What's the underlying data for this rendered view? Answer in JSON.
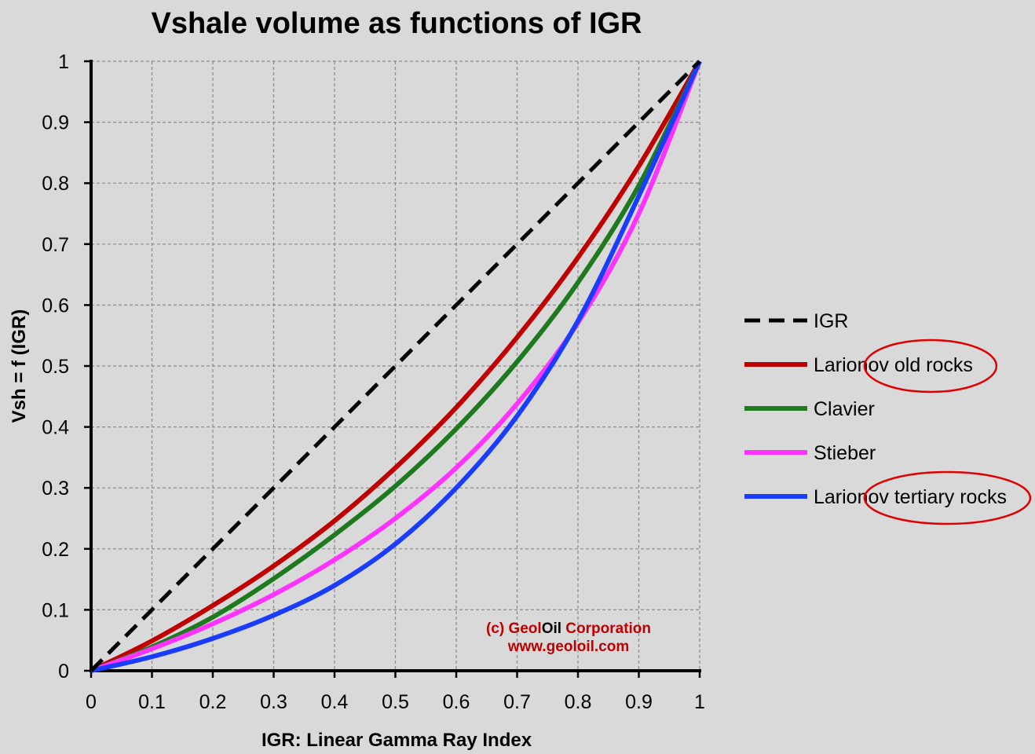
{
  "chart_data": {
    "type": "line",
    "title": "Vshale volume as functions of IGR",
    "xlabel": "IGR: Linear Gamma Ray Index",
    "ylabel": "Vsh = f (IGR)",
    "xlim": [
      0,
      1
    ],
    "ylim": [
      0,
      1
    ],
    "x_ticks": [
      "0",
      "0.1",
      "0.2",
      "0.3",
      "0.4",
      "0.5",
      "0.6",
      "0.7",
      "0.8",
      "0.9",
      "1"
    ],
    "y_ticks": [
      "0",
      "0.1",
      "0.2",
      "0.3",
      "0.4",
      "0.5",
      "0.6",
      "0.7",
      "0.8",
      "0.9",
      "1"
    ],
    "grid": true,
    "legend_position": "right",
    "x": [
      0,
      0.1,
      0.2,
      0.3,
      0.4,
      0.5,
      0.6,
      0.7,
      0.8,
      0.9,
      1
    ],
    "series": [
      {
        "name": "IGR",
        "color": "#000000",
        "dash": true,
        "values": [
          0,
          0.1,
          0.2,
          0.3,
          0.4,
          0.5,
          0.6,
          0.7,
          0.8,
          0.9,
          1
        ]
      },
      {
        "name": "Larionov old rocks",
        "color": "#c00000",
        "dash": false,
        "values": [
          0,
          0.049,
          0.107,
          0.172,
          0.246,
          0.333,
          0.432,
          0.547,
          0.678,
          0.828,
          1
        ]
      },
      {
        "name": "Clavier",
        "color": "#1e7a1e",
        "dash": false,
        "values": [
          0,
          0.039,
          0.088,
          0.151,
          0.223,
          0.303,
          0.397,
          0.507,
          0.637,
          0.796,
          1
        ]
      },
      {
        "name": "Stieber",
        "color": "#ff33ff",
        "dash": false,
        "values": [
          0,
          0.036,
          0.077,
          0.125,
          0.182,
          0.25,
          0.333,
          0.438,
          0.571,
          0.75,
          1
        ]
      },
      {
        "name": "Larionov tertiary rocks",
        "color": "#1a3cff",
        "dash": false,
        "values": [
          0,
          0.023,
          0.053,
          0.091,
          0.14,
          0.208,
          0.3,
          0.418,
          0.574,
          0.779,
          1
        ]
      }
    ],
    "legend_labels": [
      {
        "prefix": "IGR",
        "circled": ""
      },
      {
        "prefix": "Larionov ",
        "circled": "old rocks"
      },
      {
        "prefix": "Clavier",
        "circled": ""
      },
      {
        "prefix": "Stieber",
        "circled": ""
      },
      {
        "prefix": "Larionov ",
        "circled": "tertiary rocks"
      }
    ],
    "annotation_color": "#e00000",
    "watermark": {
      "line1_parts": [
        "(c) Geol",
        "Oil",
        " Corporation"
      ],
      "line2": "www.geoloil.com",
      "colors": [
        "#c00000",
        "#000000",
        "#c00000"
      ]
    }
  }
}
